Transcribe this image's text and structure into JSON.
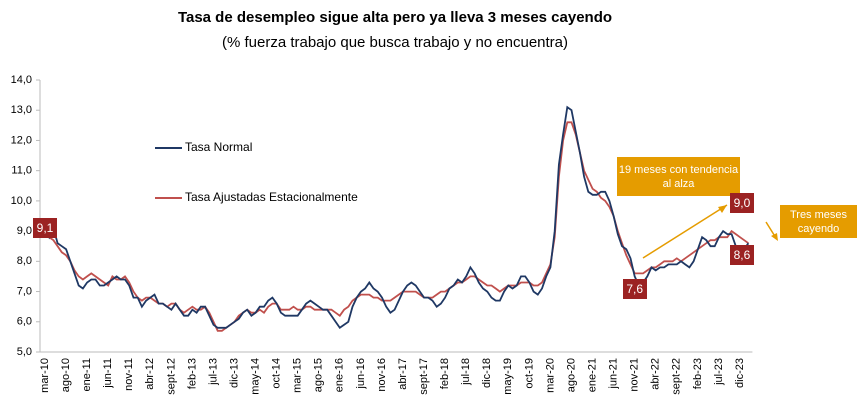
{
  "chart_data": {
    "type": "line",
    "title": "Tasa de desempleo sigue alta pero ya lleva 3 meses cayendo",
    "subtitle": "(% fuerza trabajo que busca trabajo y no encuentra)",
    "categories": [
      "mar-10",
      null,
      null,
      null,
      null,
      "ago-10",
      null,
      null,
      null,
      null,
      "ene-11",
      null,
      null,
      null,
      null,
      "jun-11",
      null,
      null,
      null,
      null,
      "nov-11",
      null,
      null,
      null,
      null,
      "abr-12",
      null,
      null,
      null,
      null,
      "sept-12",
      null,
      null,
      null,
      null,
      "feb-13",
      null,
      null,
      null,
      null,
      "jul-13",
      null,
      null,
      null,
      null,
      "dic-13",
      null,
      null,
      null,
      null,
      "may-14",
      null,
      null,
      null,
      null,
      "oct-14",
      null,
      null,
      null,
      null,
      "mar-15",
      null,
      null,
      null,
      null,
      "ago-15",
      null,
      null,
      null,
      null,
      "ene-16",
      null,
      null,
      null,
      null,
      "jun-16",
      null,
      null,
      null,
      null,
      "nov-16",
      null,
      null,
      null,
      null,
      "abr-17",
      null,
      null,
      null,
      null,
      "sept-17",
      null,
      null,
      null,
      null,
      "feb-18",
      null,
      null,
      null,
      null,
      "jul-18",
      null,
      null,
      null,
      null,
      "dic-18",
      null,
      null,
      null,
      null,
      "may-19",
      null,
      null,
      null,
      null,
      "oct-19",
      null,
      null,
      null,
      null,
      "mar-20",
      null,
      null,
      null,
      null,
      "ago-20",
      null,
      null,
      null,
      null,
      "ene-21",
      null,
      null,
      null,
      null,
      "jun-21",
      null,
      null,
      null,
      null,
      "nov-21",
      null,
      null,
      null,
      null,
      "abr-22",
      null,
      null,
      null,
      null,
      "sept-22",
      null,
      null,
      null,
      null,
      "feb-23",
      null,
      null,
      null,
      null,
      "jul-23",
      null,
      null,
      null,
      null,
      "dic-23",
      null,
      null
    ],
    "series": [
      {
        "name": "Tasa Normal",
        "color": "#1f3864",
        "values": [
          9.1,
          8.8,
          9.1,
          8.6,
          8.5,
          8.4,
          8.0,
          7.6,
          7.2,
          7.1,
          7.3,
          7.4,
          7.4,
          7.2,
          7.2,
          7.3,
          7.4,
          7.5,
          7.4,
          7.4,
          7.2,
          6.8,
          6.8,
          6.5,
          6.7,
          6.8,
          6.9,
          6.6,
          6.6,
          6.5,
          6.4,
          6.6,
          6.4,
          6.2,
          6.2,
          6.4,
          6.3,
          6.5,
          6.5,
          6.2,
          5.9,
          5.8,
          5.8,
          5.8,
          5.9,
          6.0,
          6.1,
          6.3,
          6.4,
          6.2,
          6.3,
          6.5,
          6.5,
          6.7,
          6.8,
          6.6,
          6.3,
          6.2,
          6.2,
          6.2,
          6.2,
          6.4,
          6.6,
          6.7,
          6.6,
          6.5,
          6.4,
          6.4,
          6.2,
          6.0,
          5.8,
          5.9,
          6.0,
          6.5,
          6.8,
          7.0,
          7.1,
          7.3,
          7.1,
          7.0,
          6.8,
          6.5,
          6.3,
          6.4,
          6.7,
          7.0,
          7.2,
          7.3,
          7.2,
          7.0,
          6.8,
          6.8,
          6.7,
          6.5,
          6.6,
          6.8,
          7.1,
          7.2,
          7.4,
          7.3,
          7.5,
          7.8,
          7.6,
          7.3,
          7.1,
          7.0,
          6.8,
          6.7,
          6.7,
          7.0,
          7.2,
          7.1,
          7.2,
          7.5,
          7.5,
          7.3,
          7.0,
          6.9,
          7.1,
          7.5,
          7.8,
          9.0,
          11.2,
          12.2,
          13.1,
          13.0,
          12.3,
          11.6,
          10.8,
          10.3,
          10.2,
          10.2,
          10.3,
          10.3,
          10.0,
          9.5,
          8.9,
          8.5,
          8.4,
          8.1,
          7.5,
          7.2,
          7.3,
          7.5,
          7.8,
          7.7,
          7.8,
          7.8,
          7.9,
          7.9,
          7.9,
          8.0,
          7.9,
          7.8,
          8.0,
          8.4,
          8.8,
          8.7,
          8.5,
          8.5,
          8.8,
          9.0,
          8.9,
          8.9,
          8.5,
          8.5,
          8.4,
          8.6
        ]
      },
      {
        "name": "Tasa Ajustadas Estacionalmente",
        "color": "#c0504d",
        "values": [
          9.0,
          8.8,
          8.7,
          8.5,
          8.3,
          8.2,
          8.0,
          7.7,
          7.5,
          7.4,
          7.5,
          7.6,
          7.5,
          7.4,
          7.3,
          7.2,
          7.5,
          7.4,
          7.4,
          7.5,
          7.3,
          7.0,
          6.8,
          6.7,
          6.8,
          6.8,
          6.7,
          6.6,
          6.6,
          6.5,
          6.6,
          6.6,
          6.4,
          6.3,
          6.4,
          6.5,
          6.4,
          6.4,
          6.5,
          6.3,
          6.0,
          5.7,
          5.7,
          5.8,
          5.9,
          6.0,
          6.2,
          6.3,
          6.4,
          6.3,
          6.3,
          6.4,
          6.3,
          6.5,
          6.6,
          6.6,
          6.4,
          6.4,
          6.4,
          6.5,
          6.4,
          6.4,
          6.5,
          6.5,
          6.4,
          6.4,
          6.4,
          6.4,
          6.4,
          6.3,
          6.2,
          6.4,
          6.5,
          6.7,
          6.8,
          6.9,
          6.9,
          6.9,
          6.8,
          6.8,
          6.7,
          6.7,
          6.7,
          6.8,
          6.9,
          7.0,
          7.0,
          7.0,
          7.0,
          6.9,
          6.8,
          6.8,
          6.8,
          6.9,
          7.0,
          7.0,
          7.1,
          7.2,
          7.3,
          7.3,
          7.4,
          7.5,
          7.5,
          7.4,
          7.3,
          7.2,
          7.2,
          7.1,
          7.0,
          7.1,
          7.2,
          7.2,
          7.2,
          7.3,
          7.3,
          7.3,
          7.2,
          7.2,
          7.3,
          7.6,
          7.9,
          8.8,
          10.8,
          12.0,
          12.6,
          12.6,
          12.2,
          11.6,
          11.0,
          10.7,
          10.4,
          10.3,
          10.1,
          10.0,
          9.8,
          9.5,
          9.0,
          8.6,
          8.2,
          7.9,
          7.6,
          7.6,
          7.6,
          7.7,
          7.8,
          7.8,
          7.9,
          8.0,
          8.0,
          8.0,
          8.1,
          8.0,
          8.1,
          8.2,
          8.3,
          8.4,
          8.5,
          8.6,
          8.7,
          8.7,
          8.8,
          8.8,
          8.8,
          9.0,
          8.9,
          8.8,
          8.7,
          8.6
        ]
      }
    ],
    "ylim": [
      5,
      14
    ],
    "yticks": [
      {
        "value": 5,
        "label": "5,0"
      },
      {
        "value": 6,
        "label": "6,0"
      },
      {
        "value": 7,
        "label": "7,0"
      },
      {
        "value": 8,
        "label": "8,0"
      },
      {
        "value": 9,
        "label": "9,0"
      },
      {
        "value": 10,
        "label": "10,0"
      },
      {
        "value": 11,
        "label": "11,0"
      },
      {
        "value": 12,
        "label": "12,0"
      },
      {
        "value": 13,
        "label": "13,0"
      },
      {
        "value": 14,
        "label": "14,0"
      }
    ],
    "grid": false,
    "annotations": [
      {
        "label": "9,1",
        "value": 9.1,
        "at": "mar-10"
      },
      {
        "label": "7,6",
        "value": 7.6,
        "at": "nov-21"
      },
      {
        "label": "9,0",
        "value": 9.0,
        "at": "dic-23"
      },
      {
        "label": "8,6",
        "value": 8.6,
        "at": "dic-23"
      }
    ],
    "notes": [
      "19 meses con tendencia al alza",
      "Tres meses cayendo"
    ]
  }
}
